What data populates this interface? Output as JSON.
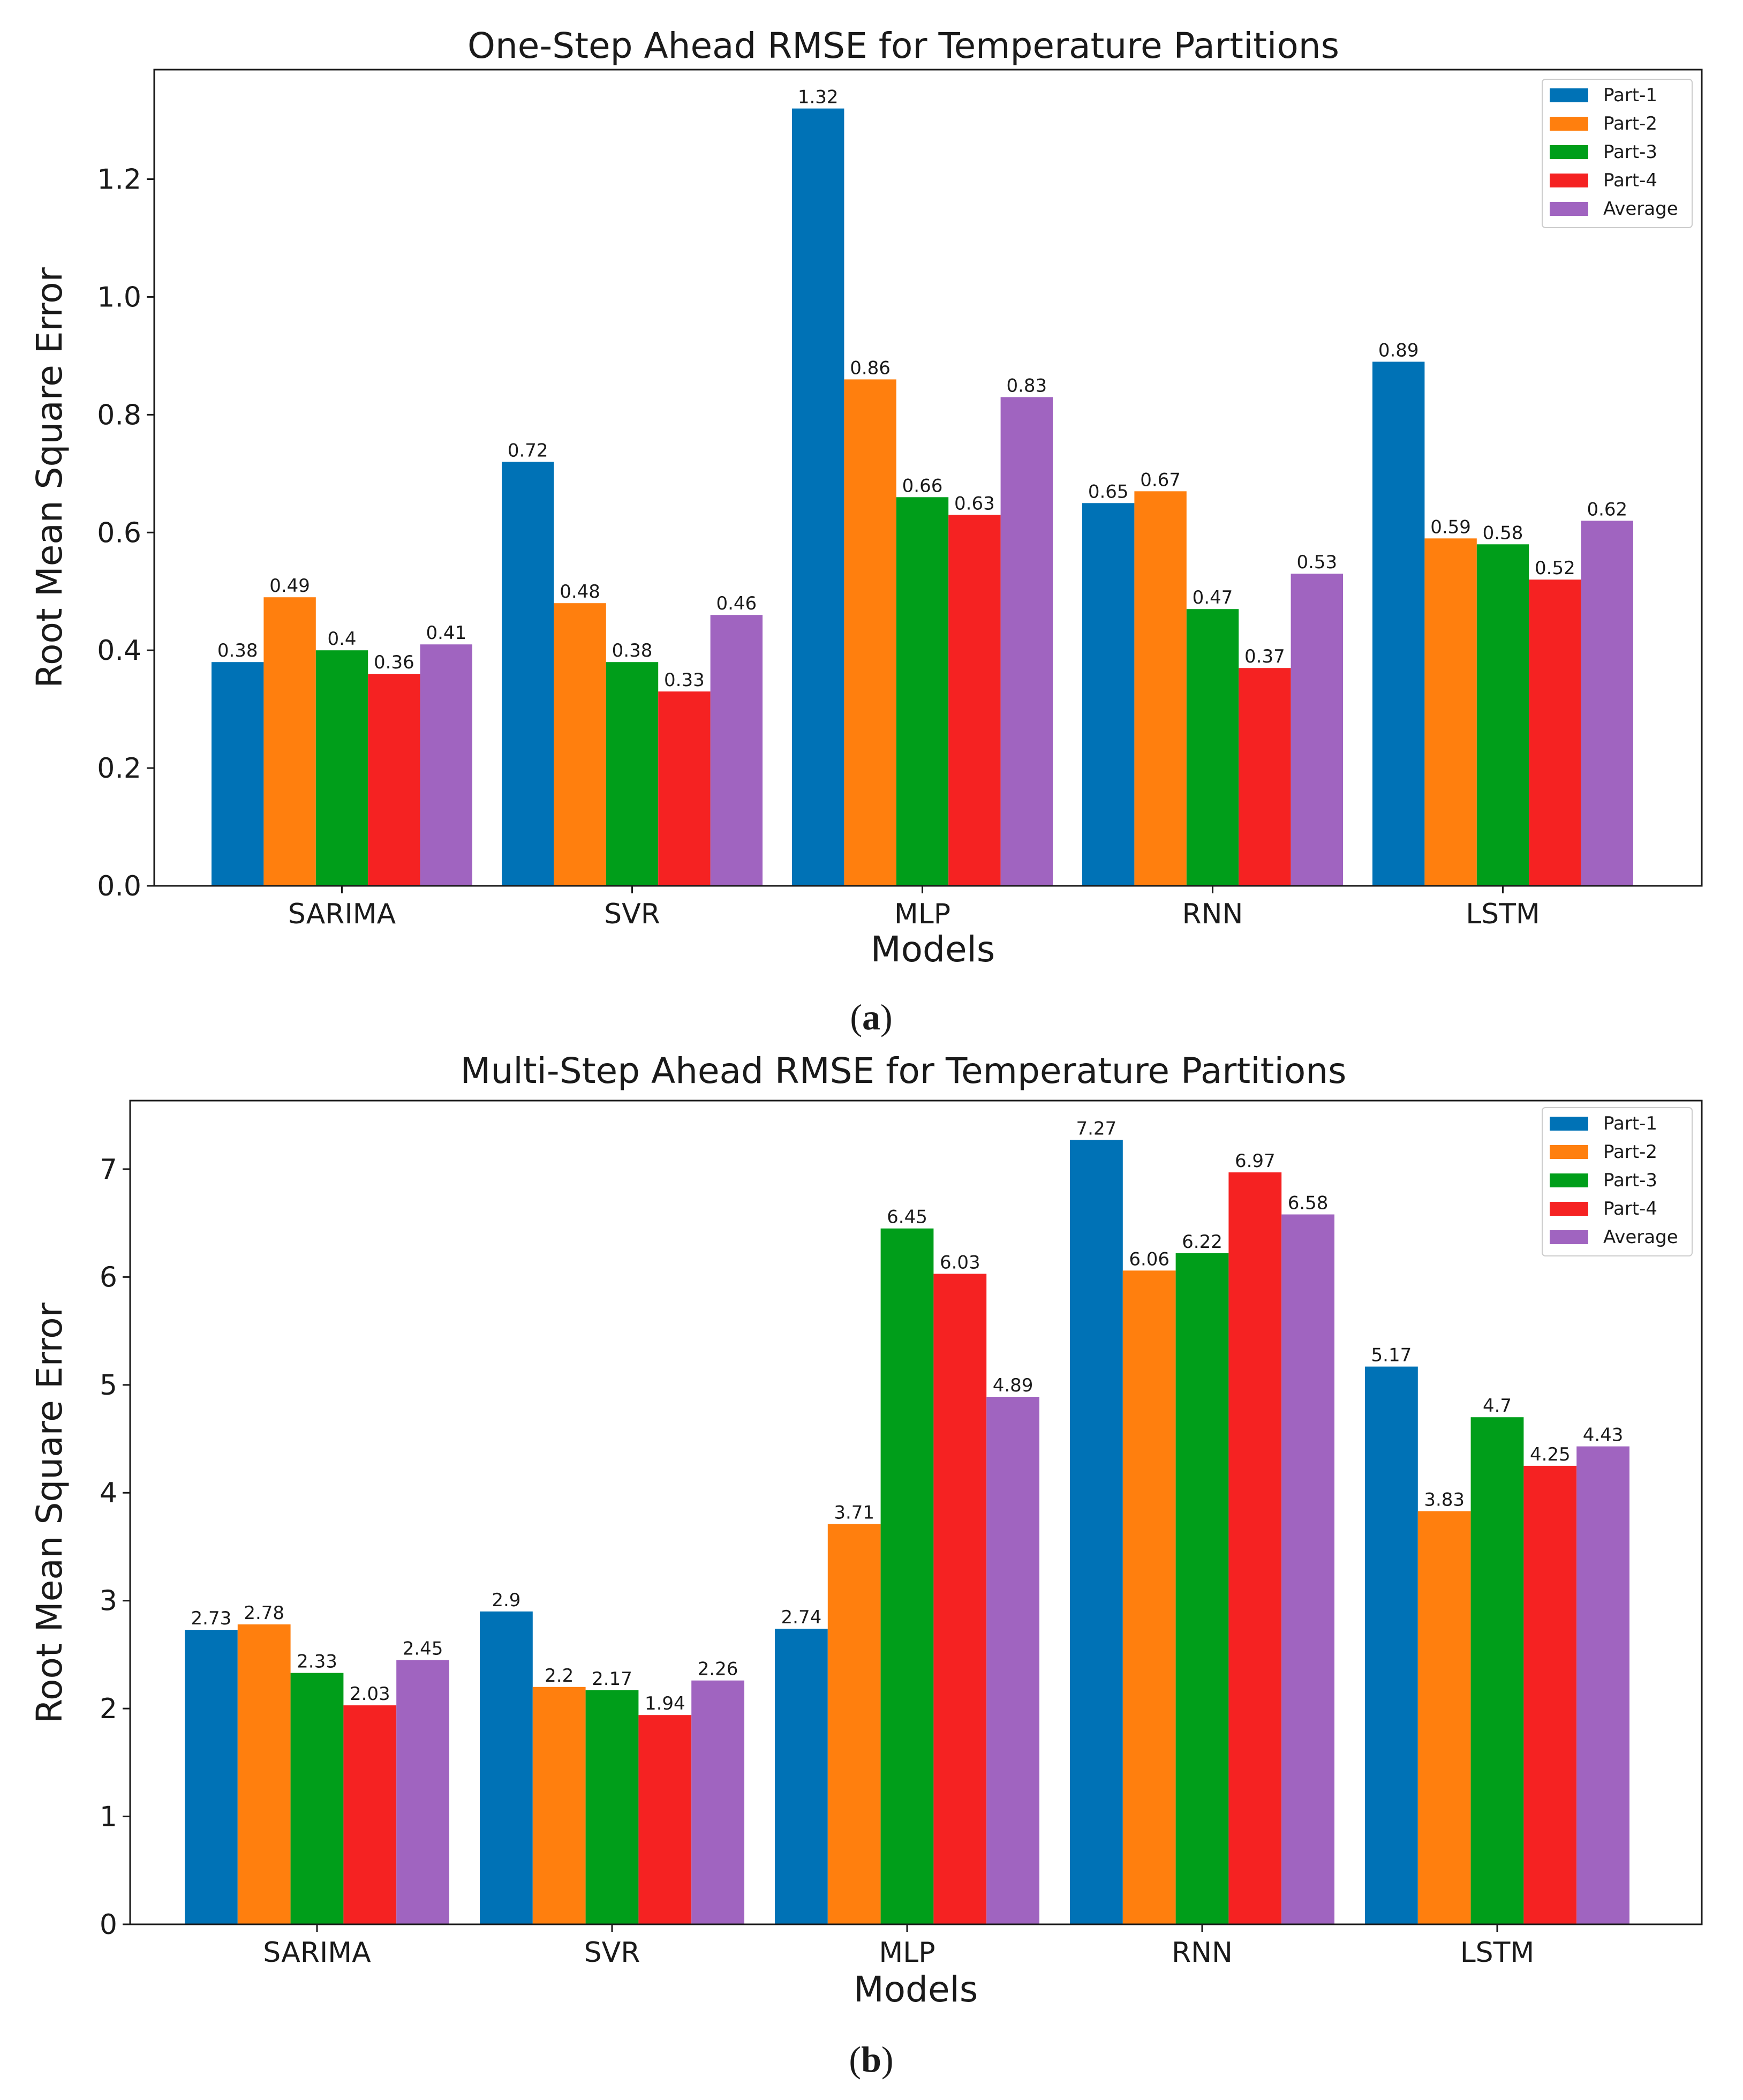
{
  "chart_data": [
    {
      "type": "bar",
      "title": "One-Step Ahead RMSE for Temperature Partitions",
      "xlabel": "Models",
      "ylabel": "Root Mean Square Error",
      "caption_letter": "a",
      "categories": [
        "SARIMA",
        "SVR",
        "MLP",
        "RNN",
        "LSTM"
      ],
      "ylim": [
        0,
        1.386
      ],
      "yticks": [
        0.0,
        0.2,
        0.4,
        0.6,
        0.8,
        1.0,
        1.2
      ],
      "ytick_labels": [
        "0.0",
        "0.2",
        "0.4",
        "0.6",
        "0.8",
        "1.0",
        "1.2"
      ],
      "grid": false,
      "legend_position": "top-right",
      "series": [
        {
          "name": "Part-1",
          "color": "#0072b6",
          "values": [
            0.38,
            0.72,
            1.32,
            0.65,
            0.89
          ],
          "labels": [
            "0.38",
            "0.72",
            "1.32",
            "0.65",
            "0.89"
          ]
        },
        {
          "name": "Part-2",
          "color": "#ff7f0e",
          "values": [
            0.49,
            0.48,
            0.86,
            0.67,
            0.59
          ],
          "labels": [
            "0.49",
            "0.48",
            "0.86",
            "0.67",
            "0.59"
          ]
        },
        {
          "name": "Part-3",
          "color": "#009e1a",
          "values": [
            0.4,
            0.38,
            0.66,
            0.47,
            0.58
          ],
          "labels": [
            "0.4",
            "0.38",
            "0.66",
            "0.47",
            "0.58"
          ]
        },
        {
          "name": "Part-4",
          "color": "#f52222",
          "values": [
            0.36,
            0.33,
            0.63,
            0.37,
            0.52
          ],
          "labels": [
            "0.36",
            "0.33",
            "0.63",
            "0.37",
            "0.52"
          ]
        },
        {
          "name": "Average",
          "color": "#a064c0",
          "values": [
            0.41,
            0.46,
            0.83,
            0.53,
            0.62
          ],
          "labels": [
            "0.41",
            "0.46",
            "0.83",
            "0.53",
            "0.62"
          ]
        }
      ]
    },
    {
      "type": "bar",
      "title": "Multi-Step Ahead RMSE for Temperature Partitions",
      "xlabel": "Models",
      "ylabel": "Root Mean Square Error",
      "caption_letter": "b",
      "categories": [
        "SARIMA",
        "SVR",
        "MLP",
        "RNN",
        "LSTM"
      ],
      "ylim": [
        0,
        7.635
      ],
      "yticks": [
        0,
        1,
        2,
        3,
        4,
        5,
        6,
        7
      ],
      "ytick_labels": [
        "0",
        "1",
        "2",
        "3",
        "4",
        "5",
        "6",
        "7"
      ],
      "grid": false,
      "legend_position": "top-right",
      "series": [
        {
          "name": "Part-1",
          "color": "#0072b6",
          "values": [
            2.73,
            2.9,
            2.74,
            7.27,
            5.17
          ],
          "labels": [
            "2.73",
            "2.9",
            "2.74",
            "7.27",
            "5.17"
          ]
        },
        {
          "name": "Part-2",
          "color": "#ff7f0e",
          "values": [
            2.78,
            2.2,
            3.71,
            6.06,
            3.83
          ],
          "labels": [
            "2.78",
            "2.2",
            "3.71",
            "6.06",
            "3.83"
          ]
        },
        {
          "name": "Part-3",
          "color": "#009e1a",
          "values": [
            2.33,
            2.17,
            6.45,
            6.22,
            4.7
          ],
          "labels": [
            "2.33",
            "2.17",
            "6.45",
            "6.22",
            "4.7"
          ]
        },
        {
          "name": "Part-4",
          "color": "#f52222",
          "values": [
            2.03,
            1.94,
            6.03,
            6.97,
            4.25
          ],
          "labels": [
            "2.03",
            "1.94",
            "6.03",
            "6.97",
            "4.25"
          ]
        },
        {
          "name": "Average",
          "color": "#a064c0",
          "values": [
            2.45,
            2.26,
            4.89,
            6.58,
            4.43
          ],
          "labels": [
            "2.45",
            "2.26",
            "4.89",
            "6.58",
            "4.43"
          ]
        }
      ]
    }
  ]
}
